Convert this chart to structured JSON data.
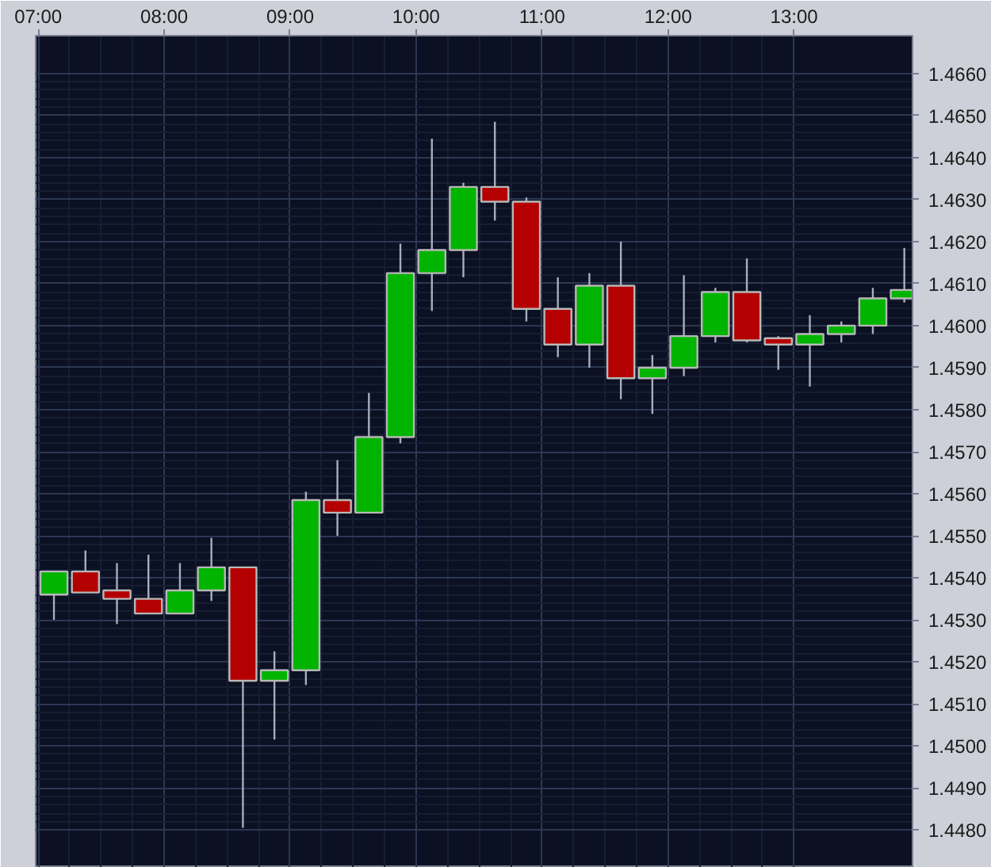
{
  "chart_data": {
    "type": "candlestick",
    "x": [
      7.125,
      7.375,
      7.625,
      7.875,
      8.125,
      8.375,
      8.625,
      8.875,
      9.125,
      9.375,
      9.625,
      9.875,
      10.125,
      10.375,
      10.625,
      10.875,
      11.125,
      11.375,
      11.625,
      11.875,
      12.125,
      12.375,
      12.625,
      12.875,
      13.125,
      13.375,
      13.625,
      13.875
    ],
    "ohlc": [
      [
        1.4536,
        1.45415,
        1.453,
        1.45415
      ],
      [
        1.45415,
        1.45465,
        1.45365,
        1.45365
      ],
      [
        1.4537,
        1.45435,
        1.4529,
        1.4535
      ],
      [
        1.4535,
        1.45455,
        1.45315,
        1.45315
      ],
      [
        1.45315,
        1.45435,
        1.45315,
        1.4537
      ],
      [
        1.4537,
        1.45495,
        1.45345,
        1.45425
      ],
      [
        1.45425,
        1.45425,
        1.44805,
        1.45155
      ],
      [
        1.45155,
        1.45225,
        1.45015,
        1.4518
      ],
      [
        1.4518,
        1.45605,
        1.45145,
        1.45585
      ],
      [
        1.45585,
        1.4568,
        1.455,
        1.45555
      ],
      [
        1.45555,
        1.4584,
        1.45555,
        1.45735
      ],
      [
        1.45735,
        1.46195,
        1.4572,
        1.46125
      ],
      [
        1.46125,
        1.46445,
        1.46035,
        1.4618
      ],
      [
        1.4618,
        1.4634,
        1.46115,
        1.4633
      ],
      [
        1.4633,
        1.46485,
        1.4625,
        1.46295
      ],
      [
        1.46295,
        1.46305,
        1.4601,
        1.4604
      ],
      [
        1.4604,
        1.46115,
        1.45925,
        1.45955
      ],
      [
        1.45955,
        1.46125,
        1.459,
        1.46095
      ],
      [
        1.46095,
        1.462,
        1.45825,
        1.45875
      ],
      [
        1.45875,
        1.4593,
        1.4579,
        1.459
      ],
      [
        1.459,
        1.4612,
        1.4588,
        1.45975
      ],
      [
        1.45975,
        1.4609,
        1.4596,
        1.4608
      ],
      [
        1.4608,
        1.4616,
        1.4596,
        1.45965
      ],
      [
        1.4597,
        1.45975,
        1.45895,
        1.45955
      ],
      [
        1.45955,
        1.46025,
        1.45855,
        1.4598
      ],
      [
        1.4598,
        1.4601,
        1.4596,
        1.46
      ],
      [
        1.46,
        1.4609,
        1.4598,
        1.46065
      ],
      [
        1.46065,
        1.46185,
        1.46055,
        1.46085
      ]
    ],
    "colors": [
      "#00b400",
      "#b40000",
      "#b40000",
      "#b40000",
      "#00b400",
      "#00b400",
      "#b40000",
      "#00b400",
      "#00b400",
      "#b40000",
      "#00b400",
      "#00b400",
      "#00b400",
      "#00b400",
      "#b40000",
      "#b40000",
      "#b40000",
      "#00b400",
      "#b40000",
      "#00b400",
      "#00b400",
      "#00b400",
      "#b40000",
      "#b40000",
      "#00b400",
      "#00b400",
      "#00b400",
      "#00b400"
    ],
    "xlim": [
      6.98,
      13.94
    ],
    "ylim": [
      1.4471,
      1.4669
    ],
    "xticks": [
      {
        "value": 7,
        "label": "07:00"
      },
      {
        "value": 8,
        "label": "08:00"
      },
      {
        "value": 9,
        "label": "09:00"
      },
      {
        "value": 10,
        "label": "10:00"
      },
      {
        "value": 11,
        "label": "11:00"
      },
      {
        "value": 12,
        "label": "12:00"
      },
      {
        "value": 13,
        "label": "13:00"
      }
    ],
    "yticks": [
      {
        "value": 1.448,
        "label": "1.4480"
      },
      {
        "value": 1.449,
        "label": "1.4490"
      },
      {
        "value": 1.45,
        "label": "1.4500"
      },
      {
        "value": 1.451,
        "label": "1.4510"
      },
      {
        "value": 1.452,
        "label": "1.4520"
      },
      {
        "value": 1.453,
        "label": "1.4530"
      },
      {
        "value": 1.454,
        "label": "1.4540"
      },
      {
        "value": 1.455,
        "label": "1.4550"
      },
      {
        "value": 1.456,
        "label": "1.4560"
      },
      {
        "value": 1.457,
        "label": "1.4570"
      },
      {
        "value": 1.458,
        "label": "1.4580"
      },
      {
        "value": 1.459,
        "label": "1.4590"
      },
      {
        "value": 1.46,
        "label": "1.4600"
      },
      {
        "value": 1.461,
        "label": "1.4610"
      },
      {
        "value": 1.462,
        "label": "1.4620"
      },
      {
        "value": 1.463,
        "label": "1.4630"
      },
      {
        "value": 1.464,
        "label": "1.4640"
      },
      {
        "value": 1.465,
        "label": "1.4650"
      },
      {
        "value": 1.466,
        "label": "1.4660"
      }
    ],
    "grid": true
  }
}
